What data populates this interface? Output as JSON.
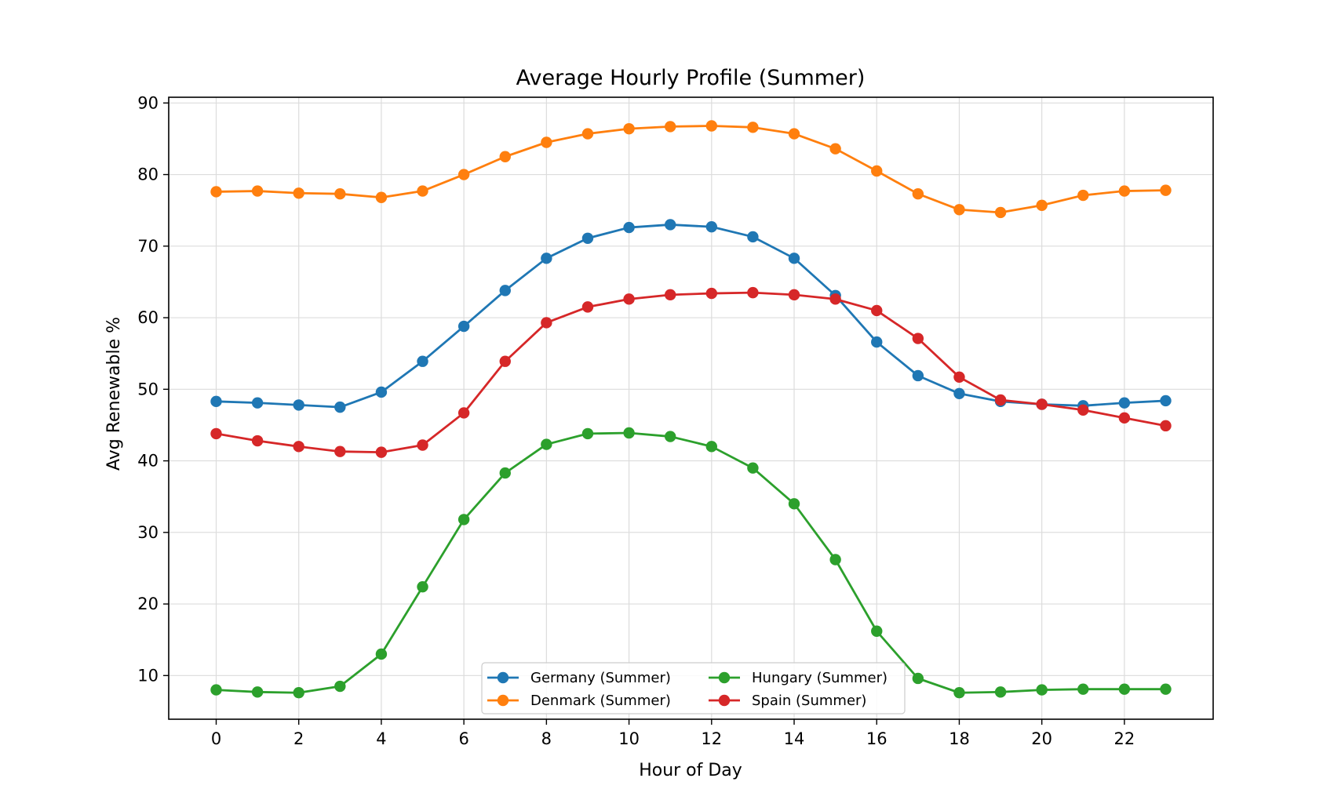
{
  "chart_data": {
    "type": "line",
    "title": "Average Hourly Profile (Summer)",
    "xlabel": "Hour of Day",
    "ylabel": "Avg Renewable %",
    "xlim": [
      -1.15,
      24.15
    ],
    "ylim": [
      3.9,
      90.8
    ],
    "xticks": [
      0,
      2,
      4,
      6,
      8,
      10,
      12,
      14,
      16,
      18,
      20,
      22
    ],
    "yticks": [
      10,
      20,
      30,
      40,
      50,
      60,
      70,
      80,
      90
    ],
    "grid": true,
    "legend_position": "lower center",
    "x": [
      0,
      1,
      2,
      3,
      4,
      5,
      6,
      7,
      8,
      9,
      10,
      11,
      12,
      13,
      14,
      15,
      16,
      17,
      18,
      19,
      20,
      21,
      22,
      23
    ],
    "series": [
      {
        "name": "Germany (Summer)",
        "color": "#1f77b4",
        "values": [
          48.3,
          48.1,
          47.8,
          47.5,
          49.6,
          53.9,
          58.8,
          63.8,
          68.3,
          71.1,
          72.6,
          73.0,
          72.7,
          71.3,
          68.3,
          63.1,
          56.6,
          51.9,
          49.4,
          48.3,
          47.9,
          47.7,
          48.1,
          48.4
        ]
      },
      {
        "name": "Denmark (Summer)",
        "color": "#ff7f0e",
        "values": [
          77.6,
          77.7,
          77.4,
          77.3,
          76.8,
          77.7,
          80.0,
          82.5,
          84.5,
          85.7,
          86.4,
          86.7,
          86.8,
          86.6,
          85.7,
          83.6,
          80.5,
          77.3,
          75.1,
          74.7,
          75.7,
          77.1,
          77.7,
          77.8
        ]
      },
      {
        "name": "Hungary (Summer)",
        "color": "#2ca02c",
        "values": [
          8.0,
          7.7,
          7.6,
          8.5,
          13.0,
          22.4,
          31.8,
          38.3,
          42.3,
          43.8,
          43.9,
          43.4,
          42.0,
          39.0,
          34.0,
          26.2,
          16.2,
          9.6,
          7.6,
          7.7,
          8.0,
          8.1,
          8.1,
          8.1
        ]
      },
      {
        "name": "Spain (Summer)",
        "color": "#d62728",
        "values": [
          43.8,
          42.8,
          42.0,
          41.3,
          41.2,
          42.2,
          46.7,
          53.9,
          59.3,
          61.5,
          62.6,
          63.2,
          63.4,
          63.5,
          63.2,
          62.6,
          61.0,
          57.1,
          51.7,
          48.5,
          47.9,
          47.1,
          46.0,
          44.9
        ]
      }
    ]
  }
}
